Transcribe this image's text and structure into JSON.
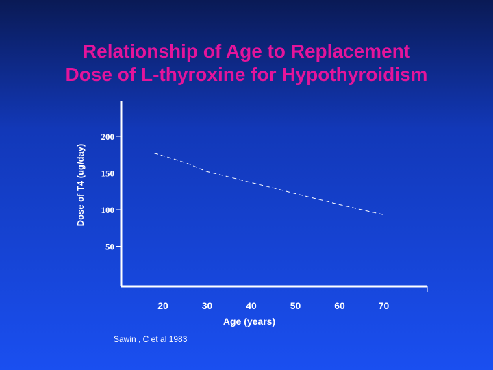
{
  "slide": {
    "title_line1": "Relationship of Age to Replacement",
    "title_line2": "Dose of L-thyroxine for Hypothyroidism",
    "source": "Sawin , C et al 1983"
  },
  "chart_data": {
    "type": "line",
    "xlabel": "Age (years)",
    "ylabel": "Dose of T4 (ug/day)",
    "xticks": [
      20,
      30,
      40,
      50,
      60,
      70
    ],
    "yticks": [
      50,
      100,
      150,
      200
    ],
    "xlim": [
      10,
      80
    ],
    "ylim": [
      0,
      240
    ],
    "series": [
      {
        "x": [
          18,
          22,
          26,
          30,
          40,
          50,
          60,
          70
        ],
        "y": [
          177,
          170,
          162,
          152,
          137,
          122,
          107,
          93
        ]
      }
    ],
    "line_style": "dashed",
    "line_color": "#ffffff"
  }
}
